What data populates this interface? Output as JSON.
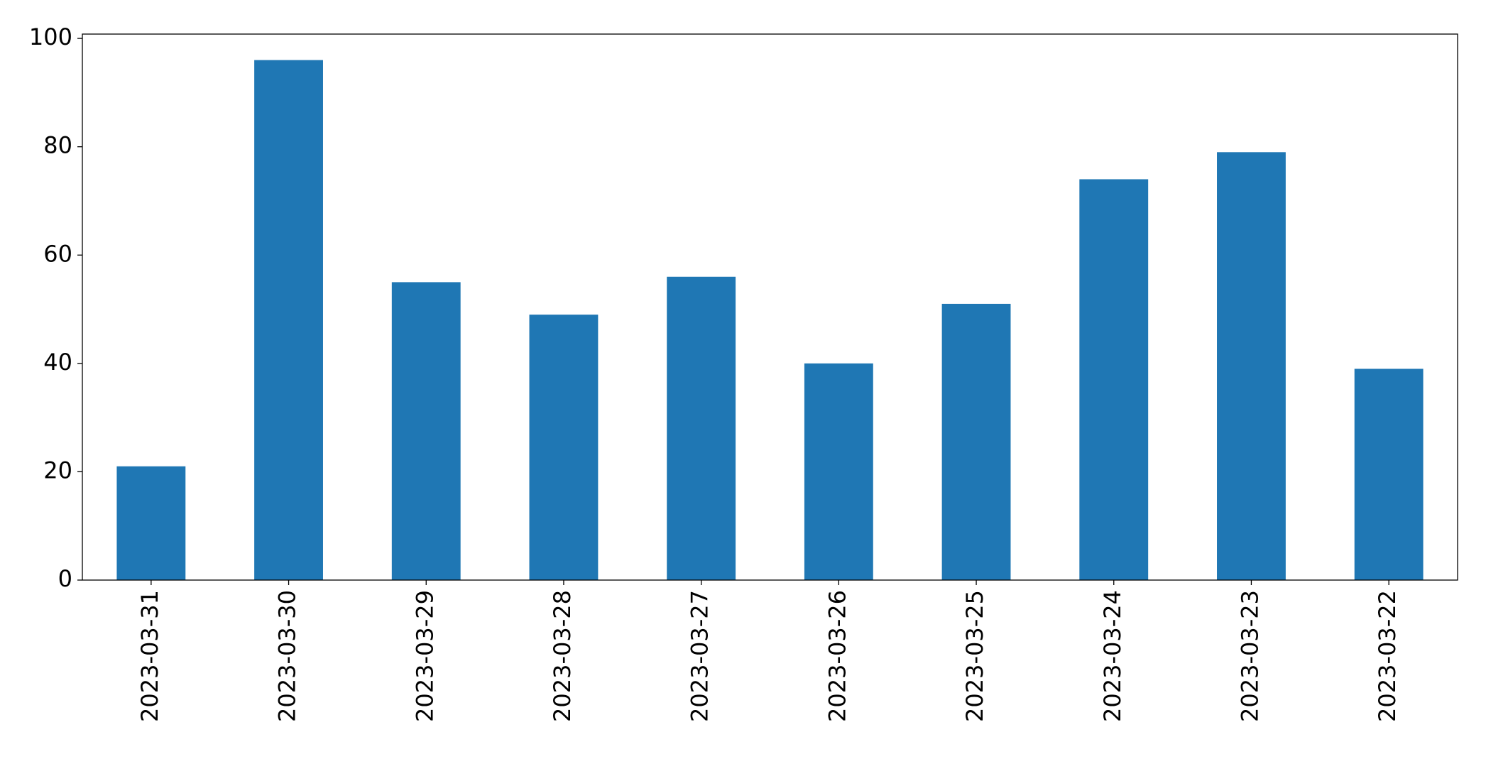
{
  "chart_data": {
    "type": "bar",
    "categories": [
      "2023-03-31",
      "2023-03-30",
      "2023-03-29",
      "2023-03-28",
      "2023-03-27",
      "2023-03-26",
      "2023-03-25",
      "2023-03-24",
      "2023-03-23",
      "2023-03-22"
    ],
    "values": [
      21,
      96,
      55,
      49,
      56,
      40,
      51,
      74,
      79,
      39
    ],
    "color": "#1f77b4",
    "ylim": [
      0,
      100.8
    ],
    "yticks": [
      0,
      20,
      40,
      60,
      80,
      100
    ],
    "grid": false
  }
}
